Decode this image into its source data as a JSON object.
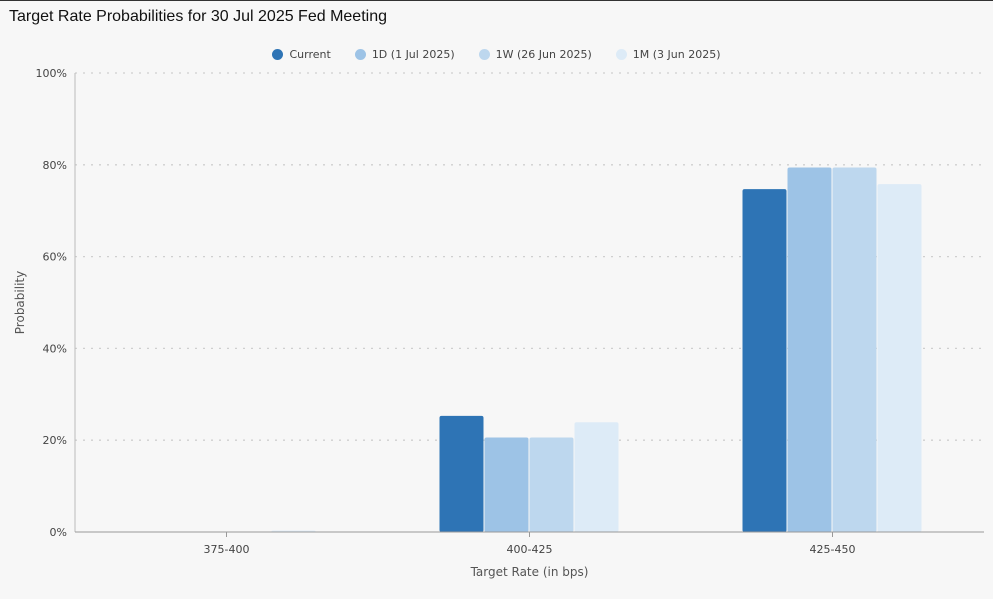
{
  "title": "Target Rate Probabilities for 30 Jul 2025 Fed Meeting",
  "chart_data": {
    "type": "bar",
    "title": "Target Rate Probabilities for 30 Jul 2025 Fed Meeting",
    "xlabel": "Target Rate (in bps)",
    "ylabel": "Probability",
    "categories": [
      "375-400",
      "400-425",
      "425-450"
    ],
    "ylim": [
      0,
      100
    ],
    "yticks": [
      "0%",
      "20%",
      "40%",
      "60%",
      "80%",
      "100%"
    ],
    "grid": true,
    "legend_position": "top-center",
    "series": [
      {
        "name": "Current",
        "color": "#2e74b5",
        "values": [
          0,
          25.3,
          74.7
        ]
      },
      {
        "name": "1D (1 Jul 2025)",
        "color": "#9dc3e6",
        "values": [
          0,
          20.6,
          79.4
        ]
      },
      {
        "name": "1W (26 Jun 2025)",
        "color": "#bdd7ee",
        "values": [
          0,
          20.6,
          79.4
        ]
      },
      {
        "name": "1M (3 Jun 2025)",
        "color": "#ddebf7",
        "values": [
          0.3,
          23.9,
          75.8
        ]
      }
    ]
  }
}
